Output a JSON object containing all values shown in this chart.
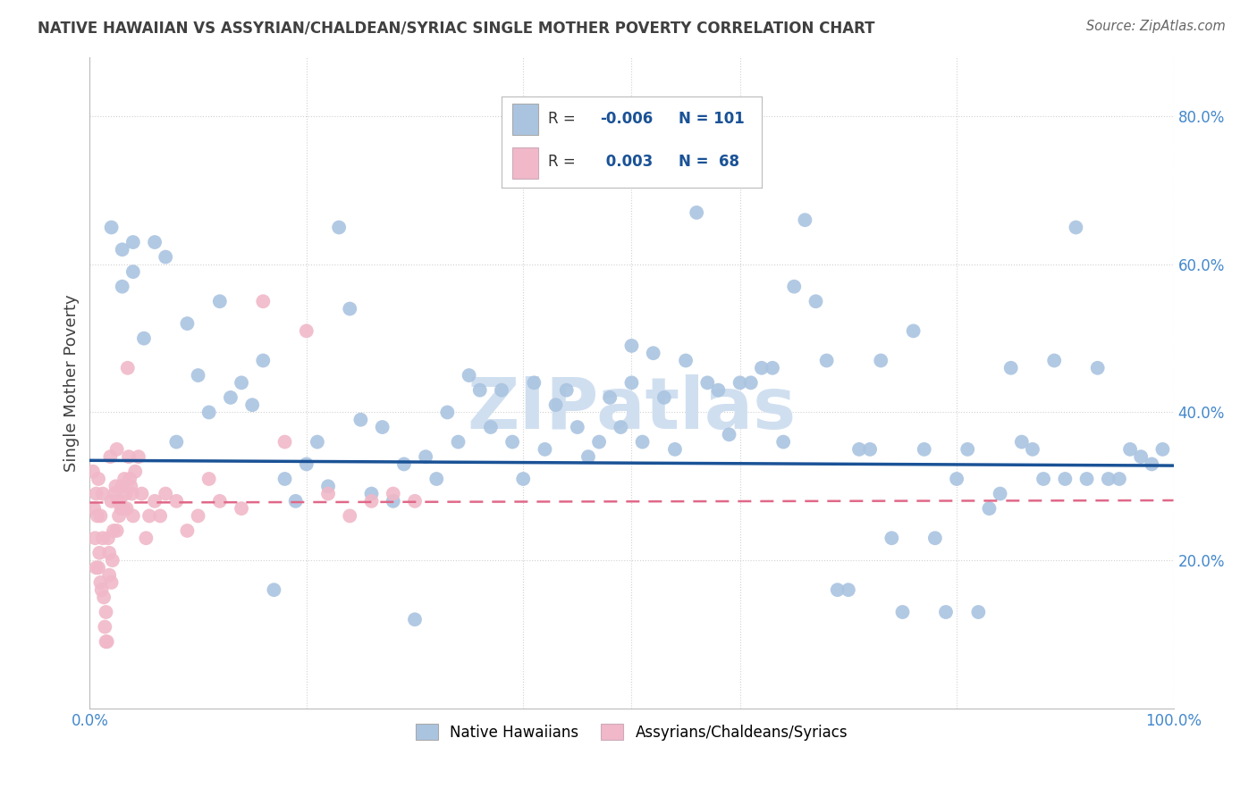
{
  "title": "NATIVE HAWAIIAN VS ASSYRIAN/CHALDEAN/SYRIAC SINGLE MOTHER POVERTY CORRELATION CHART",
  "source": "Source: ZipAtlas.com",
  "ylabel": "Single Mother Poverty",
  "xlim": [
    0,
    1.0
  ],
  "ylim": [
    0,
    0.88
  ],
  "yticks": [
    0.2,
    0.4,
    0.6,
    0.8
  ],
  "ytick_labels": [
    "20.0%",
    "40.0%",
    "60.0%",
    "80.0%"
  ],
  "color_blue": "#aac4e0",
  "color_pink": "#f0b8c8",
  "line_blue": "#1a5296",
  "line_pink": "#e06888",
  "watermark": "ZIPatlas",
  "watermark_color": "#d0dff0",
  "blue_x": [
    0.02,
    0.03,
    0.03,
    0.04,
    0.04,
    0.05,
    0.06,
    0.07,
    0.08,
    0.09,
    0.1,
    0.11,
    0.12,
    0.13,
    0.14,
    0.15,
    0.16,
    0.17,
    0.18,
    0.19,
    0.2,
    0.21,
    0.22,
    0.23,
    0.24,
    0.25,
    0.26,
    0.27,
    0.28,
    0.29,
    0.3,
    0.31,
    0.32,
    0.33,
    0.34,
    0.35,
    0.36,
    0.37,
    0.38,
    0.39,
    0.4,
    0.41,
    0.42,
    0.43,
    0.44,
    0.45,
    0.46,
    0.47,
    0.48,
    0.49,
    0.5,
    0.5,
    0.51,
    0.52,
    0.53,
    0.54,
    0.55,
    0.56,
    0.57,
    0.58,
    0.59,
    0.6,
    0.61,
    0.62,
    0.63,
    0.64,
    0.65,
    0.66,
    0.67,
    0.68,
    0.69,
    0.7,
    0.71,
    0.72,
    0.73,
    0.74,
    0.75,
    0.76,
    0.77,
    0.78,
    0.79,
    0.8,
    0.81,
    0.82,
    0.83,
    0.84,
    0.85,
    0.86,
    0.87,
    0.88,
    0.89,
    0.9,
    0.91,
    0.92,
    0.93,
    0.94,
    0.95,
    0.96,
    0.97,
    0.98,
    0.99
  ],
  "blue_y": [
    0.65,
    0.62,
    0.57,
    0.63,
    0.59,
    0.5,
    0.63,
    0.61,
    0.36,
    0.52,
    0.45,
    0.4,
    0.55,
    0.42,
    0.44,
    0.41,
    0.47,
    0.16,
    0.31,
    0.28,
    0.33,
    0.36,
    0.3,
    0.65,
    0.54,
    0.39,
    0.29,
    0.38,
    0.28,
    0.33,
    0.12,
    0.34,
    0.31,
    0.4,
    0.36,
    0.45,
    0.43,
    0.38,
    0.43,
    0.36,
    0.31,
    0.44,
    0.35,
    0.41,
    0.43,
    0.38,
    0.34,
    0.36,
    0.42,
    0.38,
    0.44,
    0.49,
    0.36,
    0.48,
    0.42,
    0.35,
    0.47,
    0.67,
    0.44,
    0.43,
    0.37,
    0.44,
    0.44,
    0.46,
    0.46,
    0.36,
    0.57,
    0.66,
    0.55,
    0.47,
    0.16,
    0.16,
    0.35,
    0.35,
    0.47,
    0.23,
    0.13,
    0.51,
    0.35,
    0.23,
    0.13,
    0.31,
    0.35,
    0.13,
    0.27,
    0.29,
    0.46,
    0.36,
    0.35,
    0.31,
    0.47,
    0.31,
    0.65,
    0.31,
    0.46,
    0.31,
    0.31,
    0.35,
    0.34,
    0.33,
    0.35
  ],
  "pink_x": [
    0.003,
    0.004,
    0.005,
    0.006,
    0.006,
    0.007,
    0.008,
    0.008,
    0.009,
    0.01,
    0.01,
    0.011,
    0.012,
    0.012,
    0.013,
    0.014,
    0.015,
    0.015,
    0.016,
    0.017,
    0.018,
    0.018,
    0.019,
    0.02,
    0.02,
    0.021,
    0.022,
    0.023,
    0.024,
    0.025,
    0.025,
    0.026,
    0.027,
    0.028,
    0.029,
    0.03,
    0.031,
    0.032,
    0.033,
    0.034,
    0.035,
    0.036,
    0.037,
    0.038,
    0.039,
    0.04,
    0.042,
    0.045,
    0.048,
    0.052,
    0.055,
    0.06,
    0.065,
    0.07,
    0.08,
    0.09,
    0.1,
    0.11,
    0.12,
    0.14,
    0.16,
    0.18,
    0.2,
    0.22,
    0.24,
    0.26,
    0.28,
    0.3
  ],
  "pink_y": [
    0.32,
    0.27,
    0.23,
    0.29,
    0.19,
    0.26,
    0.31,
    0.19,
    0.21,
    0.26,
    0.17,
    0.16,
    0.29,
    0.23,
    0.15,
    0.11,
    0.09,
    0.13,
    0.09,
    0.23,
    0.18,
    0.21,
    0.34,
    0.28,
    0.17,
    0.2,
    0.24,
    0.29,
    0.3,
    0.35,
    0.24,
    0.28,
    0.26,
    0.28,
    0.27,
    0.3,
    0.27,
    0.31,
    0.29,
    0.27,
    0.46,
    0.34,
    0.31,
    0.3,
    0.29,
    0.26,
    0.32,
    0.34,
    0.29,
    0.23,
    0.26,
    0.28,
    0.26,
    0.29,
    0.28,
    0.24,
    0.26,
    0.31,
    0.28,
    0.27,
    0.55,
    0.36,
    0.51,
    0.29,
    0.26,
    0.28,
    0.29,
    0.28
  ],
  "blue_trend_x": [
    0.0,
    1.0
  ],
  "blue_trend_y": [
    0.335,
    0.328
  ],
  "pink_trend_x": [
    0.0,
    1.0
  ],
  "pink_trend_y": [
    0.278,
    0.281
  ],
  "background_color": "#ffffff",
  "grid_color": "#cccccc",
  "title_color": "#404040",
  "axis_label_color": "#4488cc"
}
